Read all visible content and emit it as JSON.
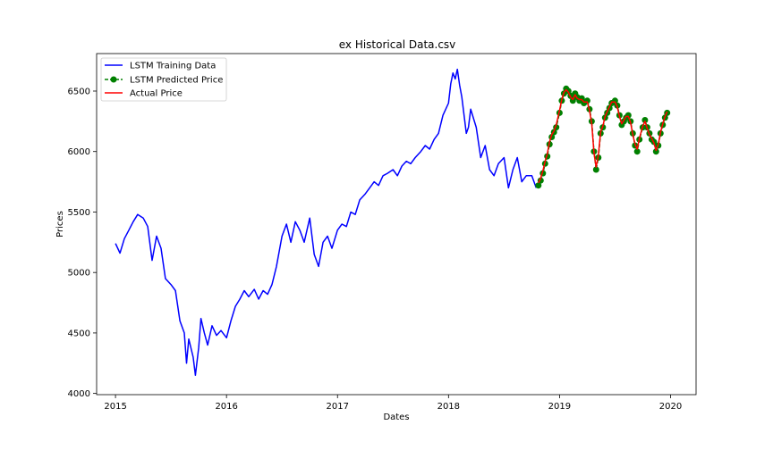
{
  "chart_data": {
    "type": "line",
    "title": "ex Historical Data.csv",
    "xlabel": "Dates",
    "ylabel": "Prices",
    "xlim": [
      2014.83,
      2020.23
    ],
    "ylim": [
      3990,
      6810
    ],
    "x_ticks": [
      2015,
      2016,
      2017,
      2018,
      2019,
      2020
    ],
    "x_tick_labels": [
      "2015",
      "2016",
      "2017",
      "2018",
      "2019",
      "2020"
    ],
    "y_ticks": [
      4000,
      4500,
      5000,
      5500,
      6000,
      6500
    ],
    "y_tick_labels": [
      "4000",
      "4500",
      "5000",
      "5500",
      "6000",
      "6500"
    ],
    "grid": false,
    "legend": {
      "position": "top-left",
      "entries": [
        "LSTM Training Data",
        "LSTM Predicted Price",
        "Actual Price"
      ]
    },
    "colors": {
      "training": "#0000ff",
      "predicted": "#008000",
      "actual": "#ff0000"
    },
    "series": [
      {
        "name": "LSTM Training Data",
        "style": "line",
        "color": "#0000ff",
        "x": [
          2015.0,
          2015.04,
          2015.08,
          2015.12,
          2015.16,
          2015.2,
          2015.25,
          2015.29,
          2015.33,
          2015.37,
          2015.41,
          2015.45,
          2015.5,
          2015.54,
          2015.58,
          2015.62,
          2015.64,
          2015.66,
          2015.7,
          2015.72,
          2015.75,
          2015.77,
          2015.8,
          2015.83,
          2015.87,
          2015.91,
          2015.95,
          2016.0,
          2016.04,
          2016.08,
          2016.12,
          2016.16,
          2016.2,
          2016.25,
          2016.29,
          2016.33,
          2016.37,
          2016.41,
          2016.45,
          2016.5,
          2016.54,
          2016.58,
          2016.62,
          2016.66,
          2016.7,
          2016.75,
          2016.79,
          2016.83,
          2016.87,
          2016.91,
          2016.95,
          2017.0,
          2017.04,
          2017.08,
          2017.12,
          2017.16,
          2017.2,
          2017.25,
          2017.29,
          2017.33,
          2017.37,
          2017.41,
          2017.45,
          2017.5,
          2017.54,
          2017.58,
          2017.62,
          2017.66,
          2017.7,
          2017.75,
          2017.79,
          2017.83,
          2017.87,
          2017.91,
          2017.95,
          2018.0,
          2018.02,
          2018.04,
          2018.06,
          2018.08,
          2018.1,
          2018.12,
          2018.14,
          2018.16,
          2018.18,
          2018.2,
          2018.25,
          2018.29,
          2018.33,
          2018.37,
          2018.41,
          2018.45,
          2018.5,
          2018.54,
          2018.58,
          2018.62,
          2018.66,
          2018.7,
          2018.75,
          2018.79
        ],
        "y": [
          5240,
          5160,
          5280,
          5350,
          5420,
          5480,
          5450,
          5380,
          5100,
          5300,
          5200,
          4950,
          4900,
          4850,
          4600,
          4500,
          4250,
          4450,
          4300,
          4150,
          4380,
          4620,
          4500,
          4400,
          4560,
          4480,
          4520,
          4460,
          4600,
          4720,
          4780,
          4850,
          4800,
          4860,
          4780,
          4850,
          4820,
          4900,
          5050,
          5300,
          5400,
          5250,
          5420,
          5350,
          5250,
          5450,
          5150,
          5050,
          5250,
          5300,
          5200,
          5350,
          5400,
          5380,
          5500,
          5480,
          5600,
          5650,
          5700,
          5750,
          5720,
          5800,
          5820,
          5850,
          5800,
          5880,
          5920,
          5900,
          5950,
          6000,
          6050,
          6020,
          6100,
          6150,
          6300,
          6400,
          6560,
          6650,
          6600,
          6680,
          6550,
          6450,
          6300,
          6150,
          6200,
          6350,
          6200,
          5950,
          6050,
          5850,
          5800,
          5900,
          5950,
          5700,
          5850,
          5950,
          5750,
          5800,
          5800,
          5700
        ]
      },
      {
        "name": "LSTM Predicted Price",
        "style": "line+markers",
        "color": "#008000",
        "x": [
          2018.81,
          2018.83,
          2018.85,
          2018.87,
          2018.89,
          2018.91,
          2018.93,
          2018.95,
          2018.97,
          2019.0,
          2019.02,
          2019.04,
          2019.06,
          2019.08,
          2019.1,
          2019.12,
          2019.14,
          2019.16,
          2019.18,
          2019.2,
          2019.22,
          2019.25,
          2019.27,
          2019.29,
          2019.31,
          2019.33,
          2019.35,
          2019.37,
          2019.39,
          2019.41,
          2019.43,
          2019.45,
          2019.47,
          2019.5,
          2019.52,
          2019.54,
          2019.56,
          2019.58,
          2019.6,
          2019.62,
          2019.64,
          2019.66,
          2019.68,
          2019.7,
          2019.72,
          2019.75,
          2019.77,
          2019.79,
          2019.81,
          2019.83,
          2019.85,
          2019.87,
          2019.89,
          2019.91,
          2019.93,
          2019.95,
          2019.97
        ],
        "y": [
          5720,
          5760,
          5820,
          5900,
          5960,
          6060,
          6120,
          6160,
          6200,
          6320,
          6420,
          6480,
          6520,
          6500,
          6460,
          6420,
          6480,
          6450,
          6420,
          6440,
          6400,
          6420,
          6350,
          6250,
          6000,
          5850,
          5950,
          6150,
          6200,
          6280,
          6320,
          6360,
          6400,
          6420,
          6380,
          6300,
          6220,
          6250,
          6280,
          6300,
          6250,
          6150,
          6050,
          6000,
          6100,
          6200,
          6260,
          6200,
          6150,
          6100,
          6080,
          6000,
          6050,
          6150,
          6220,
          6280,
          6320
        ]
      },
      {
        "name": "Actual Price",
        "style": "line",
        "color": "#ff0000",
        "x": [
          2018.81,
          2018.83,
          2018.85,
          2018.87,
          2018.89,
          2018.91,
          2018.93,
          2018.95,
          2018.97,
          2019.0,
          2019.02,
          2019.04,
          2019.06,
          2019.08,
          2019.1,
          2019.12,
          2019.14,
          2019.16,
          2019.18,
          2019.2,
          2019.22,
          2019.25,
          2019.27,
          2019.29,
          2019.31,
          2019.33,
          2019.35,
          2019.37,
          2019.39,
          2019.41,
          2019.43,
          2019.45,
          2019.47,
          2019.5,
          2019.52,
          2019.54,
          2019.56,
          2019.58,
          2019.6,
          2019.62,
          2019.64,
          2019.66,
          2019.68,
          2019.7,
          2019.72,
          2019.75,
          2019.77,
          2019.79,
          2019.81,
          2019.83,
          2019.85,
          2019.87,
          2019.89,
          2019.91,
          2019.93,
          2019.95,
          2019.97
        ],
        "y": [
          5740,
          5780,
          5840,
          5920,
          5980,
          6080,
          6140,
          6170,
          6220,
          6340,
          6430,
          6490,
          6510,
          6490,
          6450,
          6430,
          6470,
          6440,
          6430,
          6430,
          6410,
          6410,
          6340,
          6230,
          5990,
          5870,
          5970,
          6160,
          6210,
          6290,
          6330,
          6370,
          6410,
          6410,
          6370,
          6290,
          6230,
          6260,
          6290,
          6290,
          6240,
          6140,
          6060,
          6020,
          6110,
          6210,
          6250,
          6190,
          6140,
          6110,
          6070,
          6010,
          6060,
          6160,
          6230,
          6290,
          6330
        ]
      }
    ]
  }
}
